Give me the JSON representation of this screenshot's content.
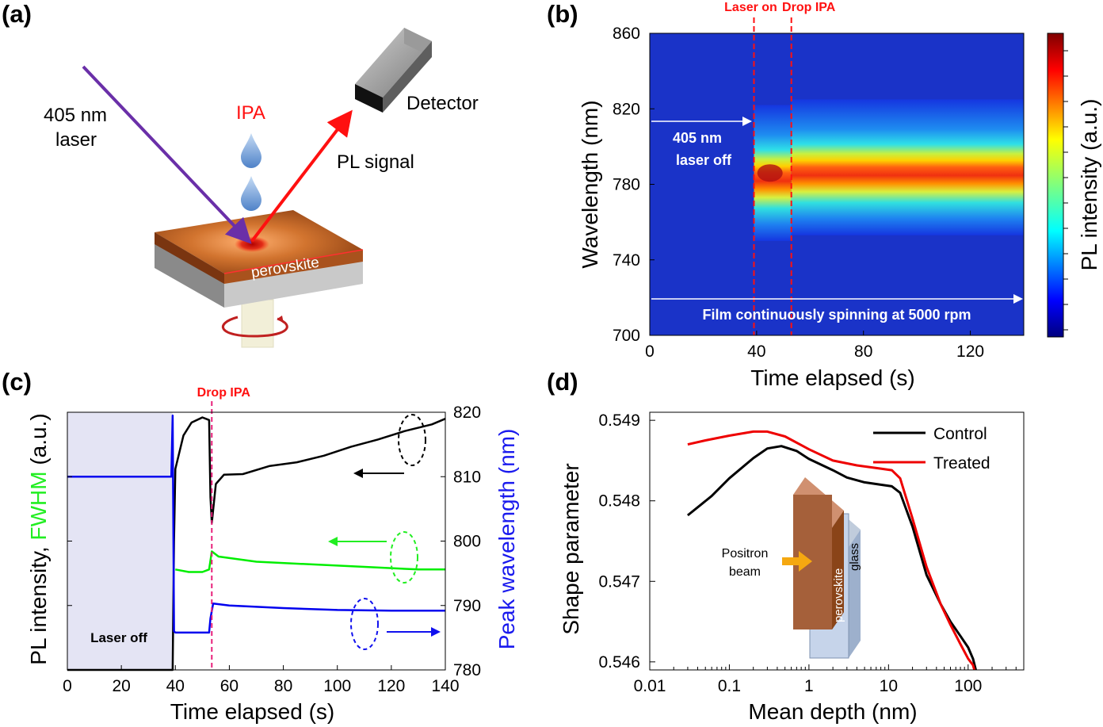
{
  "panels": {
    "a": {
      "label": "(a)",
      "laser_text_1": "405 nm",
      "laser_text_2": "laser",
      "ipa_text": "IPA",
      "detector_text": "Detector",
      "pl_signal_text": "PL signal",
      "sample_text": "perovskite",
      "colors": {
        "laser": "#6a2fa8",
        "signal": "#ff1010",
        "film": "#a9521d",
        "drop": "#6f9bd8"
      }
    },
    "b": {
      "label": "(b)",
      "laser_on_text": "Laser on",
      "drop_ipa_text": "Drop IPA",
      "laser_off_text_1": "405 nm",
      "laser_off_text_2": "laser off",
      "spinning_text": "Film continuously spinning at 5000 rpm",
      "colorbar_label": "PL intensity (a.u.)"
    },
    "c": {
      "label": "(c)",
      "drop_ipa_text": "Drop IPA",
      "laser_off_text": "Laser off",
      "ylabel_left_part1": "PL intensity, ",
      "ylabel_left_part2": "FWHM",
      "ylabel_left_part3": " (a.u.)",
      "ylabel_right": "Peak wavelength (nm)"
    },
    "d": {
      "label": "(d)",
      "inset_beam_1": "Positron",
      "inset_beam_2": "beam",
      "inset_film": "perovskite",
      "inset_glass": "glass"
    }
  },
  "chart_data": [
    {
      "id": "b",
      "type": "heatmap",
      "xlabel": "Time elapsed (s)",
      "ylabel": "Wavelength (nm)",
      "xlim": [
        0,
        140
      ],
      "ylim": [
        700,
        860
      ],
      "xticks": [
        0,
        40,
        80,
        120
      ],
      "yticks": [
        700,
        740,
        780,
        820,
        860
      ],
      "colorbar": "jet",
      "events": [
        {
          "name": "Laser on",
          "x": 39
        },
        {
          "name": "Drop IPA",
          "x": 53
        }
      ],
      "peak_wavelength": [
        {
          "t": 40,
          "nm": 786
        },
        {
          "t": 53,
          "nm": 789
        },
        {
          "t": 140,
          "nm": 789
        }
      ]
    },
    {
      "id": "c",
      "type": "line",
      "xlabel": "Time elapsed (s)",
      "xlim": [
        0,
        140
      ],
      "xticks": [
        0,
        20,
        40,
        60,
        80,
        100,
        120,
        140
      ],
      "y2lim": [
        780,
        820
      ],
      "y2ticks": [
        780,
        790,
        800,
        810,
        820
      ],
      "series": [
        {
          "color": "#000000",
          "axis": "left_norm",
          "points": [
            [
              0,
              0.0
            ],
            [
              39,
              0.0
            ],
            [
              39.5,
              0.5
            ],
            [
              40,
              0.78
            ],
            [
              43,
              0.91
            ],
            [
              46,
              0.96
            ],
            [
              50,
              0.98
            ],
            [
              52.5,
              0.97
            ],
            [
              53,
              0.67
            ],
            [
              53.5,
              0.57
            ],
            [
              55,
              0.72
            ],
            [
              58,
              0.75
            ],
            [
              65,
              0.76
            ],
            [
              75,
              0.79
            ],
            [
              85,
              0.81
            ],
            [
              95,
              0.84
            ],
            [
              105,
              0.87
            ],
            [
              115,
              0.9
            ],
            [
              125,
              0.93
            ],
            [
              135,
              0.96
            ],
            [
              140,
              0.98
            ]
          ]
        },
        {
          "color": "#00ee00",
          "axis": "left_norm",
          "points": [
            [
              40,
              0.39
            ],
            [
              45,
              0.38
            ],
            [
              50,
              0.38
            ],
            [
              52.5,
              0.39
            ],
            [
              53.5,
              0.46
            ],
            [
              56,
              0.44
            ],
            [
              70,
              0.42
            ],
            [
              90,
              0.41
            ],
            [
              110,
              0.4
            ],
            [
              130,
              0.39
            ],
            [
              140,
              0.39
            ]
          ]
        },
        {
          "color": "#0000ee",
          "axis": "right_nm",
          "points": [
            [
              0,
              810
            ],
            [
              38.5,
              810
            ],
            [
              39,
              819.5
            ],
            [
              39.5,
              786
            ],
            [
              40,
              785.8
            ],
            [
              52.5,
              785.8
            ],
            [
              53,
              788
            ],
            [
              54,
              790.3
            ],
            [
              60,
              790
            ],
            [
              80,
              789.6
            ],
            [
              100,
              789.3
            ],
            [
              120,
              789.2
            ],
            [
              140,
              789.2
            ]
          ]
        }
      ],
      "events": [
        {
          "name": "Drop IPA",
          "x": 53.5
        }
      ],
      "shaded_region": {
        "label": "Laser off",
        "x": [
          0,
          39
        ]
      }
    },
    {
      "id": "d",
      "type": "line",
      "xlabel": "Mean depth (nm)",
      "ylabel": "Shape parameter",
      "xscale": "log",
      "xlim": [
        0.01,
        500
      ],
      "xticks": [
        0.01,
        0.1,
        1,
        10,
        100
      ],
      "xtick_labels": [
        "0.01",
        "0.1",
        "1",
        "10",
        "100"
      ],
      "ylim": [
        0.5459,
        0.5491
      ],
      "yticks": [
        0.546,
        0.547,
        0.548,
        0.549
      ],
      "ytick_labels": [
        "0.546",
        "0.547",
        "0.548",
        "0.549"
      ],
      "legend_position": "top-right",
      "series": [
        {
          "name": "Control",
          "color": "#000000",
          "points": [
            [
              0.03,
              0.54782
            ],
            [
              0.06,
              0.54806
            ],
            [
              0.1,
              0.54828
            ],
            [
              0.2,
              0.54853
            ],
            [
              0.3,
              0.54865
            ],
            [
              0.45,
              0.54868
            ],
            [
              0.7,
              0.54862
            ],
            [
              1,
              0.54852
            ],
            [
              2,
              0.54838
            ],
            [
              3,
              0.54829
            ],
            [
              5,
              0.54823
            ],
            [
              8,
              0.5482
            ],
            [
              11,
              0.54818
            ],
            [
              14,
              0.5481
            ],
            [
              20,
              0.54768
            ],
            [
              30,
              0.54708
            ],
            [
              45,
              0.54672
            ],
            [
              60,
              0.5465
            ],
            [
              80,
              0.54632
            ],
            [
              100,
              0.54618
            ],
            [
              115,
              0.54604
            ],
            [
              125,
              0.5459
            ]
          ]
        },
        {
          "name": "Treated",
          "color": "#ee0000",
          "points": [
            [
              0.03,
              0.5487
            ],
            [
              0.05,
              0.54875
            ],
            [
              0.1,
              0.54881
            ],
            [
              0.2,
              0.54886
            ],
            [
              0.3,
              0.54886
            ],
            [
              0.5,
              0.5488
            ],
            [
              1,
              0.54864
            ],
            [
              2,
              0.5485
            ],
            [
              4,
              0.54844
            ],
            [
              8,
              0.5484
            ],
            [
              11,
              0.54838
            ],
            [
              14,
              0.54828
            ],
            [
              20,
              0.54778
            ],
            [
              30,
              0.54718
            ],
            [
              45,
              0.54672
            ],
            [
              60,
              0.54646
            ],
            [
              80,
              0.54622
            ],
            [
              100,
              0.54604
            ],
            [
              115,
              0.54596
            ],
            [
              120,
              0.5459
            ]
          ]
        }
      ]
    }
  ]
}
